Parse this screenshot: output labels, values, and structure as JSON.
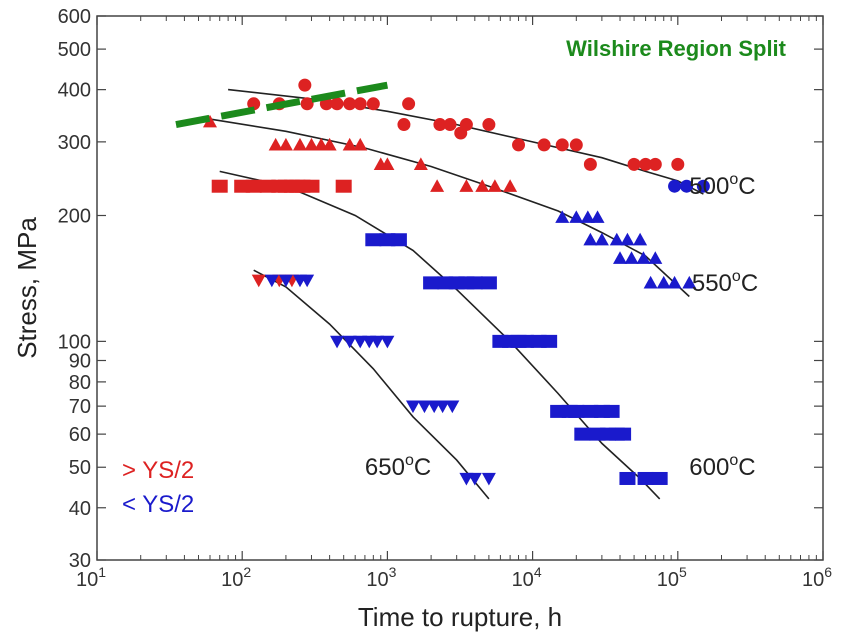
{
  "chart_data": {
    "type": "scatter",
    "title": "",
    "xlabel": "Time to rupture, h",
    "ylabel": "Stress, MPa",
    "xscale": "log",
    "yscale": "log",
    "xlim": [
      10,
      1000000
    ],
    "ylim": [
      30,
      600
    ],
    "grid": false,
    "x_ticks": [
      {
        "value": 10,
        "base": "10",
        "exp": "1"
      },
      {
        "value": 100,
        "base": "10",
        "exp": "2"
      },
      {
        "value": 1000,
        "base": "10",
        "exp": "3"
      },
      {
        "value": 10000,
        "base": "10",
        "exp": "4"
      },
      {
        "value": 100000,
        "base": "10",
        "exp": "5"
      },
      {
        "value": 1000000,
        "base": "10",
        "exp": "6"
      }
    ],
    "y_ticks": [
      {
        "value": 600,
        "label": "600"
      },
      {
        "value": 500,
        "label": "500"
      },
      {
        "value": 400,
        "label": "400"
      },
      {
        "value": 300,
        "label": "300"
      },
      {
        "value": 200,
        "label": "200"
      },
      {
        "value": 100,
        "label": "100"
      },
      {
        "value": 90,
        "label": "90"
      },
      {
        "value": 80,
        "label": "80"
      },
      {
        "value": 70,
        "label": "70"
      },
      {
        "value": 60,
        "label": "60"
      },
      {
        "value": 50,
        "label": "50"
      },
      {
        "value": 40,
        "label": "40"
      },
      {
        "value": 30,
        "label": "30"
      }
    ],
    "legend": {
      "placement": "bottom-left",
      "items": [
        {
          "label": "> YS/2",
          "color": "#dd2222"
        },
        {
          "label": "< YS/2",
          "color": "#1a1acc"
        }
      ]
    },
    "colors": {
      "above": "#dd2222",
      "below": "#1a1acc",
      "curve": "#222222",
      "annotation": "#1c8a1c"
    },
    "annotations": [
      {
        "text": "Wilshire Region Split",
        "color": "#1c8a1c",
        "placement": "top-right",
        "line": {
          "style": "dashed",
          "x": [
            35,
            1000
          ],
          "y": [
            330,
            410
          ]
        }
      }
    ],
    "curve_labels": [
      {
        "text": "500",
        "suffix": "C",
        "x": 120000,
        "y": 235
      },
      {
        "text": "550",
        "suffix": "C",
        "x": 125000,
        "y": 138
      },
      {
        "text": "650",
        "suffix": "C",
        "x": 700,
        "y": 50
      },
      {
        "text": "600",
        "suffix": "C",
        "x": 120000,
        "y": 50
      }
    ],
    "curves": [
      {
        "name": "500C",
        "x": [
          80,
          300,
          1000,
          3000,
          10000,
          30000,
          60000,
          100000,
          150000
        ],
        "y": [
          400,
          380,
          355,
          330,
          300,
          275,
          255,
          242,
          225
        ]
      },
      {
        "name": "550C",
        "x": [
          60,
          200,
          700,
          2000,
          5000,
          15000,
          30000,
          60000,
          120000
        ],
        "y": [
          340,
          318,
          290,
          262,
          235,
          205,
          182,
          160,
          128
        ]
      },
      {
        "name": "600C",
        "x": [
          70,
          200,
          600,
          1500,
          3000,
          7000,
          15000,
          30000,
          55000,
          75000
        ],
        "y": [
          255,
          235,
          200,
          165,
          133,
          100,
          75,
          57,
          47,
          42
        ]
      },
      {
        "name": "650C",
        "x": [
          120,
          200,
          400,
          800,
          1500,
          3000,
          5000
        ],
        "y": [
          148,
          135,
          110,
          86,
          66,
          52,
          42
        ]
      }
    ],
    "series": [
      {
        "color": "#dd2222",
        "marker": "circle",
        "x": [
          120,
          180,
          270,
          280,
          380,
          450,
          550,
          650,
          800,
          1300,
          1400,
          2300,
          2700,
          3200,
          3500,
          5000,
          8000,
          12000,
          16000,
          20000,
          25000,
          50000,
          60000,
          70000,
          100000
        ],
        "y": [
          370,
          370,
          410,
          370,
          370,
          370,
          370,
          370,
          370,
          330,
          370,
          330,
          330,
          315,
          330,
          330,
          295,
          295,
          295,
          295,
          265,
          265,
          265,
          265,
          265
        ]
      },
      {
        "color": "#1a1acc",
        "marker": "circle",
        "x": [
          95000,
          115000,
          150000
        ],
        "y": [
          235,
          235,
          235
        ]
      },
      {
        "color": "#dd2222",
        "marker": "triangle-up",
        "x": [
          60,
          170,
          200,
          250,
          300,
          350,
          400,
          550,
          650,
          900,
          1000,
          1700,
          2200,
          3500,
          4500,
          5500,
          7000
        ],
        "y": [
          335,
          295,
          295,
          295,
          295,
          295,
          295,
          295,
          295,
          265,
          265,
          265,
          235,
          235,
          235,
          235,
          235
        ]
      },
      {
        "color": "#1a1acc",
        "marker": "triangle-up",
        "x": [
          16000,
          20000,
          24000,
          28000,
          25000,
          30000,
          38000,
          45000,
          55000,
          40000,
          48000,
          58000,
          70000,
          65000,
          80000,
          95000,
          120000
        ],
        "y": [
          198,
          198,
          198,
          198,
          175,
          175,
          175,
          175,
          175,
          158,
          158,
          158,
          158,
          138,
          138,
          138,
          138
        ]
      },
      {
        "color": "#dd2222",
        "marker": "square",
        "x": [
          70,
          100,
          120,
          150,
          180,
          200,
          220,
          240,
          260,
          300,
          500
        ],
        "y": [
          235,
          235,
          235,
          235,
          235,
          235,
          235,
          235,
          235,
          235,
          235
        ]
      },
      {
        "color": "#1a1acc",
        "marker": "square",
        "x": [
          800,
          1000,
          1200,
          2000,
          2500,
          3000,
          3500,
          4000,
          5000,
          6000,
          7000,
          8000,
          9000,
          11000,
          13000,
          15000,
          18000,
          20000,
          25000,
          30000,
          35000,
          22000,
          28000,
          33000,
          38000,
          42000,
          45000,
          60000,
          75000
        ],
        "y": [
          175,
          175,
          175,
          138,
          138,
          138,
          138,
          138,
          138,
          100,
          100,
          100,
          100,
          100,
          100,
          68,
          68,
          68,
          68,
          68,
          68,
          60,
          60,
          60,
          60,
          60,
          47,
          47,
          47
        ]
      },
      {
        "color": "#dd2222",
        "marker": "triangle-down",
        "x": [
          130,
          180,
          220
        ],
        "y": [
          140,
          140,
          140
        ]
      },
      {
        "color": "#1a1acc",
        "marker": "triangle-down",
        "x": [
          160,
          200,
          250,
          280,
          450,
          550,
          650,
          750,
          850,
          1000,
          1500,
          1800,
          2100,
          2400,
          2800,
          3500,
          4000,
          5000
        ],
        "y": [
          140,
          140,
          140,
          140,
          100,
          100,
          100,
          100,
          100,
          100,
          70,
          70,
          70,
          70,
          70,
          47,
          47,
          47
        ]
      }
    ]
  }
}
